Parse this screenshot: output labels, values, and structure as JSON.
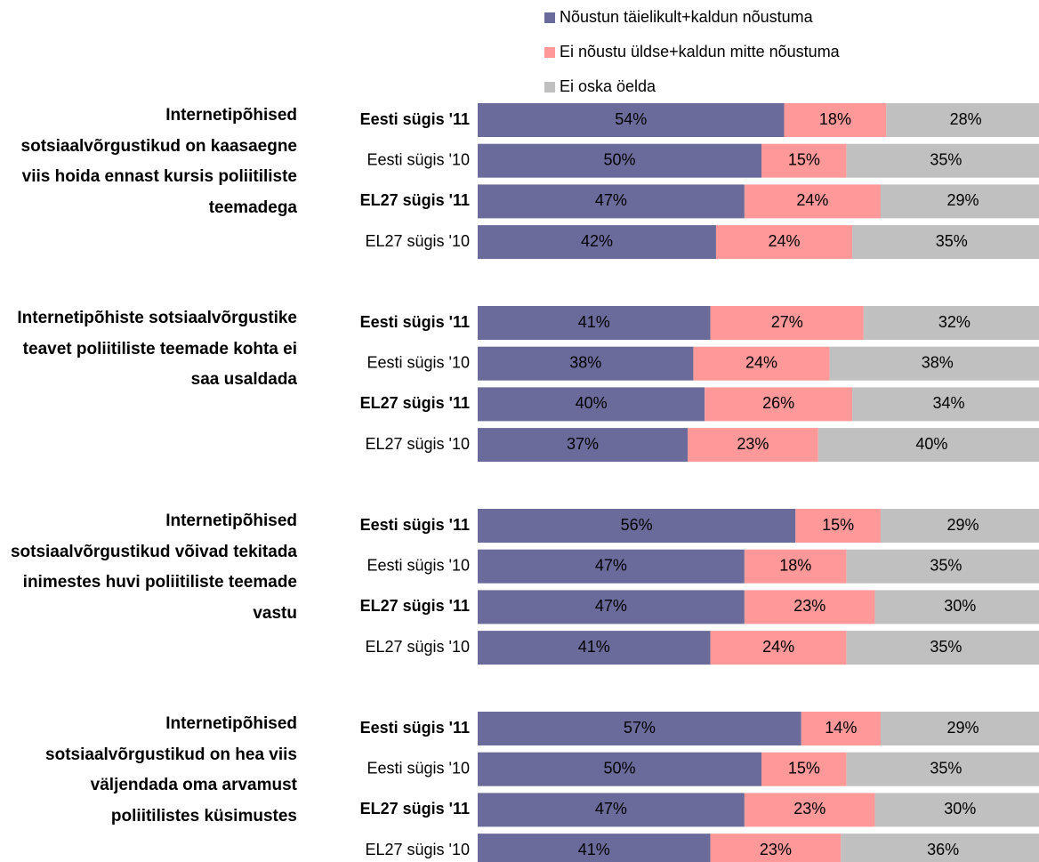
{
  "chart_data": {
    "type": "bar",
    "stacked": true,
    "orientation": "horizontal",
    "groups": [
      "Internetipõhised sotsiaalvõrgustikud on kaasaegne viis hoida ennast kursis poliitiliste teemadega",
      "Internetipõhiste sotsiaalvõrgustike teavet poliitiliste teemade kohta ei saa usaldada",
      "Internetipõhised sotsiaalvõrgustikud võivad tekitada inimestes huvi poliitiliste teemade vastu",
      "Internetipõhised sotsiaalvõrgustikud on hea viis väljendada oma arvamust poliitilistes küsimustes"
    ],
    "categories": [
      "Eesti sügis '11",
      "Eesti sügis '10",
      "EL27 sügis '11",
      "EL27 sügis '10",
      "Eesti sügis '11",
      "Eesti sügis '10",
      "EL27 sügis '11",
      "EL27 sügis '10",
      "Eesti sügis '11",
      "Eesti sügis '10",
      "EL27 sügis '11",
      "EL27 sügis '10",
      "Eesti sügis '11",
      "Eesti sügis '10",
      "EL27 sügis '11",
      "EL27 sügis '10"
    ],
    "series": [
      {
        "name": "Nõustun täielikult+kaldun nõustuma",
        "color": "#6b6b9b",
        "values": [
          54,
          50,
          47,
          42,
          41,
          38,
          40,
          37,
          56,
          47,
          47,
          41,
          57,
          50,
          47,
          41
        ],
        "value_labels": [
          "54%",
          "50%",
          "47%",
          "42%",
          "41%",
          "38%",
          "40%",
          "37%",
          "56%",
          "47%",
          "47%",
          "41%",
          "57%",
          "50%",
          "47%",
          "41%"
        ]
      },
      {
        "name": "Ei nõustu üldse+kaldun mitte nõustuma",
        "color": "#ff9999",
        "values": [
          18,
          15,
          24,
          24,
          27,
          24,
          26,
          23,
          15,
          18,
          23,
          24,
          14,
          15,
          23,
          23
        ],
        "value_labels": [
          "18%",
          "15%",
          "24%",
          "24%",
          "27%",
          "24%",
          "26%",
          "23%",
          "15%",
          "18%",
          "23%",
          "24%",
          "14%",
          "15%",
          "23%",
          "23%"
        ]
      },
      {
        "name": "Ei oska öelda",
        "color": "#c0c0c0",
        "values": [
          28,
          35,
          29,
          35,
          32,
          38,
          34,
          40,
          29,
          35,
          30,
          35,
          29,
          35,
          30,
          36
        ],
        "value_labels": [
          "28%",
          "35%",
          "29%",
          "35%",
          "32%",
          "38%",
          "34%",
          "40%",
          "29%",
          "35%",
          "30%",
          "35%",
          "29%",
          "35%",
          "30%",
          "36%"
        ]
      }
    ]
  }
}
